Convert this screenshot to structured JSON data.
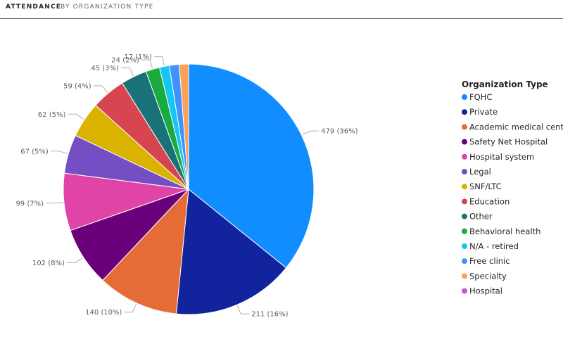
{
  "tabs": [
    {
      "label": "ATTENDANCE",
      "active": true
    },
    {
      "label": "BY ORGANIZATION TYPE",
      "active": false
    }
  ],
  "chart_data": {
    "type": "pie",
    "legend_title": "Organization Type",
    "legend_position": "right",
    "slices": [
      {
        "name": "FQHC",
        "value": 479,
        "label": "479 (36%)",
        "color": "#118DFF"
      },
      {
        "name": "Private",
        "value": 211,
        "label": "211 (16%)",
        "color": "#12239E"
      },
      {
        "name": "Academic medical center",
        "value": 140,
        "label": "140 (10%)",
        "color": "#E66C37"
      },
      {
        "name": "Safety Net Hospital",
        "value": 102,
        "label": "102 (8%)",
        "color": "#6B007B"
      },
      {
        "name": "Hospital system",
        "value": 99,
        "label": "99 (7%)",
        "color": "#E044A7"
      },
      {
        "name": "Legal",
        "value": 67,
        "label": "67 (5%)",
        "color": "#744EC2"
      },
      {
        "name": "SNF/LTC",
        "value": 62,
        "label": "62 (5%)",
        "color": "#D9B300"
      },
      {
        "name": "Education",
        "value": 59,
        "label": "59 (4%)",
        "color": "#D64550"
      },
      {
        "name": "Other",
        "value": 45,
        "label": "45 (3%)",
        "color": "#197278"
      },
      {
        "name": "Behavioral health",
        "value": 24,
        "label": "24 (2%)",
        "color": "#1AAB40"
      },
      {
        "name": "N/A - retired",
        "value": 17,
        "label": "17 (1%)",
        "color": "#15C6F4"
      },
      {
        "name": "Free clinic",
        "value": 17,
        "label": "",
        "color": "#4092FF"
      },
      {
        "name": "Specialty",
        "value": 16,
        "label": "",
        "color": "#FFA058"
      },
      {
        "name": "Hospital",
        "value": 0,
        "label": "",
        "color": "#BE5DC9"
      }
    ]
  }
}
